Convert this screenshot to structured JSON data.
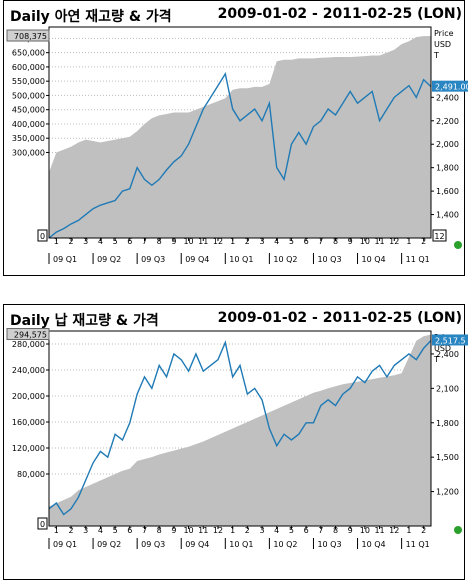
{
  "charts": [
    {
      "title": "Daily 아연 재고량 & 가격",
      "date_range": "2009-01-02 - 2011-02-25 (LON)",
      "left_axis_title": "Price",
      "right_axis_title": [
        "Price",
        "USD",
        "T"
      ],
      "left_last_value": "708,375",
      "right_last_value": "2,491.00",
      "left_zero": "0",
      "right_min_label": "12"
    },
    {
      "title": "Daily 납 재고량 & 가격",
      "date_range": "2009-01-02 - 2011-02-25 (LON)",
      "left_axis_title": "Price",
      "right_axis_title": [
        "Price",
        "USD",
        "T"
      ],
      "left_last_value": "294,575",
      "right_last_value": "2,517.5",
      "left_zero": "0",
      "right_min_label": ""
    }
  ],
  "colors": {
    "stock_fill": "#c0c0c0",
    "price_line": "#1f7ab5",
    "marker": "#2ca02c",
    "label_bg": "#2a86c2"
  },
  "chart_data": [
    {
      "type": "area",
      "title": "Daily 아연 재고량 & 가격",
      "x_month_ticks": [
        "1",
        "2",
        "3",
        "4",
        "5",
        "6",
        "7",
        "8",
        "9",
        "10",
        "11",
        "12",
        "1",
        "2",
        "3",
        "4",
        "5",
        "6",
        "7",
        "8",
        "9",
        "10",
        "11",
        "12",
        "1",
        "2"
      ],
      "x_quarter_labels": [
        "09 Q1",
        "09 Q2",
        "09 Q3",
        "09 Q4",
        "10 Q1",
        "10 Q2",
        "10 Q3",
        "10 Q4",
        "11 Q1"
      ],
      "ylim_left": [
        0,
        740000
      ],
      "yticks_left": [
        "300,000",
        "350,000",
        "400,000",
        "450,000",
        "500,000",
        "550,000",
        "600,000",
        "650,000",
        "700,000"
      ],
      "ylim_right": [
        1200,
        3000
      ],
      "yticks_right": [
        "1,400",
        "1,600",
        "1,800",
        "2,000",
        "2,200",
        "2,400"
      ],
      "series": [
        {
          "name": "",
          "axis": "left",
          "x": [
            0,
            0.5,
            1,
            1.5,
            2,
            2.5,
            3,
            3.5,
            4,
            4.5,
            5,
            5.5,
            6,
            6.5,
            7,
            7.5,
            8,
            8.5,
            9,
            9.5,
            10,
            10.5,
            11,
            11.5,
            12,
            12.5,
            13,
            13.5,
            14,
            14.5,
            15,
            15.5,
            16,
            16.5,
            17,
            17.5,
            18,
            18.5,
            19,
            19.5,
            20,
            20.5,
            21,
            21.5,
            22,
            22.5,
            23,
            23.5,
            24,
            24.5,
            25,
            25.5,
            26
          ],
          "values": [
            230000,
            300000,
            310000,
            320000,
            335000,
            345000,
            340000,
            335000,
            340000,
            345000,
            350000,
            355000,
            375000,
            400000,
            420000,
            430000,
            435000,
            440000,
            440000,
            440000,
            450000,
            460000,
            470000,
            480000,
            490000,
            520000,
            525000,
            525000,
            530000,
            530000,
            540000,
            620000,
            625000,
            625000,
            630000,
            630000,
            630000,
            632000,
            633000,
            635000,
            635000,
            635000,
            636000,
            638000,
            640000,
            640000,
            650000,
            660000,
            680000,
            690000,
            705000,
            708000,
            708375
          ]
        },
        {
          "name": "",
          "axis": "right",
          "x": [
            0,
            0.5,
            1,
            1.5,
            2,
            2.5,
            3,
            3.5,
            4,
            4.5,
            5,
            5.5,
            6,
            6.5,
            7,
            7.5,
            8,
            8.5,
            9,
            9.5,
            10,
            10.5,
            11,
            11.5,
            12,
            12.5,
            13,
            13.5,
            14,
            14.5,
            15,
            15.5,
            16,
            16.5,
            17,
            17.5,
            18,
            18.5,
            19,
            19.5,
            20,
            20.5,
            21,
            21.5,
            22,
            22.5,
            23,
            23.5,
            24,
            24.5,
            25,
            25.5,
            26
          ],
          "values": [
            1200,
            1250,
            1280,
            1320,
            1350,
            1400,
            1450,
            1480,
            1500,
            1520,
            1600,
            1620,
            1800,
            1700,
            1650,
            1700,
            1780,
            1850,
            1900,
            2000,
            2150,
            2300,
            2400,
            2500,
            2600,
            2300,
            2200,
            2250,
            2300,
            2200,
            2350,
            1800,
            1700,
            2000,
            2100,
            2000,
            2150,
            2200,
            2300,
            2250,
            2350,
            2450,
            2350,
            2400,
            2450,
            2200,
            2300,
            2400,
            2450,
            2500,
            2400,
            2550,
            2491
          ]
        }
      ]
    },
    {
      "type": "area",
      "title": "Daily 납 재고량 & 가격",
      "x_month_ticks": [
        "1",
        "2",
        "3",
        "4",
        "5",
        "6",
        "7",
        "8",
        "9",
        "10",
        "11",
        "12",
        "1",
        "2",
        "3",
        "4",
        "5",
        "6",
        "7",
        "8",
        "9",
        "10",
        "11",
        "12",
        "1",
        "2"
      ],
      "x_quarter_labels": [
        "09 Q1",
        "09 Q2",
        "09 Q3",
        "09 Q4",
        "10 Q1",
        "10 Q2",
        "10 Q3",
        "10 Q4",
        "11 Q1"
      ],
      "ylim_left": [
        0,
        300000
      ],
      "yticks_left": [
        "80,000",
        "120,000",
        "160,000",
        "200,000",
        "240,000",
        "280,000"
      ],
      "ylim_right": [
        900,
        2600
      ],
      "yticks_right": [
        "1,200",
        "1,500",
        "1,800",
        "2,100",
        "2,400"
      ],
      "series": [
        {
          "name": "",
          "axis": "left",
          "x": [
            0,
            0.5,
            1,
            1.5,
            2,
            2.5,
            3,
            3.5,
            4,
            4.5,
            5,
            5.5,
            6,
            6.5,
            7,
            7.5,
            8,
            8.5,
            9,
            9.5,
            10,
            10.5,
            11,
            11.5,
            12,
            12.5,
            13,
            13.5,
            14,
            14.5,
            15,
            15.5,
            16,
            16.5,
            17,
            17.5,
            18,
            18.5,
            19,
            19.5,
            20,
            20.5,
            21,
            21.5,
            22,
            22.5,
            23,
            23.5,
            24,
            24.5,
            25,
            25.5,
            26
          ],
          "values": [
            30000,
            35000,
            40000,
            45000,
            55000,
            60000,
            65000,
            70000,
            75000,
            80000,
            85000,
            88000,
            100000,
            103000,
            106000,
            110000,
            113000,
            116000,
            119000,
            122000,
            126000,
            130000,
            135000,
            140000,
            145000,
            150000,
            155000,
            160000,
            165000,
            170000,
            175000,
            180000,
            185000,
            190000,
            195000,
            200000,
            205000,
            208000,
            212000,
            215000,
            218000,
            220000,
            222000,
            224000,
            226000,
            228000,
            230000,
            232000,
            235000,
            260000,
            285000,
            292000,
            294575
          ]
        },
        {
          "name": "",
          "axis": "right",
          "x": [
            0,
            0.5,
            1,
            1.5,
            2,
            2.5,
            3,
            3.5,
            4,
            4.5,
            5,
            5.5,
            6,
            6.5,
            7,
            7.5,
            8,
            8.5,
            9,
            9.5,
            10,
            10.5,
            11,
            11.5,
            12,
            12.5,
            13,
            13.5,
            14,
            14.5,
            15,
            15.5,
            16,
            16.5,
            17,
            17.5,
            18,
            18.5,
            19,
            19.5,
            20,
            20.5,
            21,
            21.5,
            22,
            22.5,
            23,
            23.5,
            24,
            24.5,
            25,
            25.5,
            26
          ],
          "values": [
            1050,
            1100,
            1000,
            1050,
            1150,
            1300,
            1450,
            1550,
            1500,
            1700,
            1650,
            1800,
            2050,
            2200,
            2100,
            2300,
            2200,
            2400,
            2350,
            2250,
            2400,
            2250,
            2300,
            2350,
            2500,
            2200,
            2300,
            2050,
            2100,
            2000,
            1750,
            1600,
            1700,
            1650,
            1700,
            1800,
            1800,
            1950,
            2000,
            1950,
            2050,
            2100,
            2200,
            2150,
            2250,
            2300,
            2200,
            2300,
            2350,
            2400,
            2350,
            2450,
            2517.5
          ]
        }
      ]
    }
  ]
}
